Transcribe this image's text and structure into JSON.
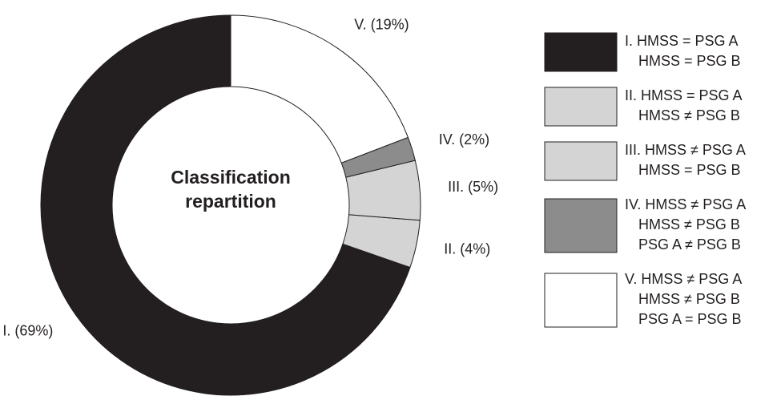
{
  "chart_data": {
    "type": "donut",
    "center_label": [
      "Classification",
      "repartition"
    ],
    "values": [
      69,
      4,
      5,
      2,
      19
    ],
    "value_labels": [
      "I. (69%)",
      "II. (4%)",
      "III. (5%)",
      "IV. (2%)",
      "V. (19%)"
    ],
    "legend": [
      [
        "I. HMSS = PSG A",
        "HMSS = PSG B"
      ],
      [
        "II. HMSS = PSG A",
        "HMSS ≠ PSG B"
      ],
      [
        "III. HMSS ≠ PSG A",
        "HMSS = PSG B"
      ],
      [
        "IV. HMSS ≠ PSG A",
        "HMSS ≠ PSG B",
        "PSG A ≠ PSG B"
      ],
      [
        "V. HMSS ≠ PSG A",
        "HMSS ≠ PSG B",
        "PSG A = PSG B"
      ]
    ],
    "colors": [
      "#231f20",
      "#d4d4d4",
      "#d4d4d4",
      "#8c8c8c",
      "#ffffff"
    ],
    "counterclockwise": true
  }
}
